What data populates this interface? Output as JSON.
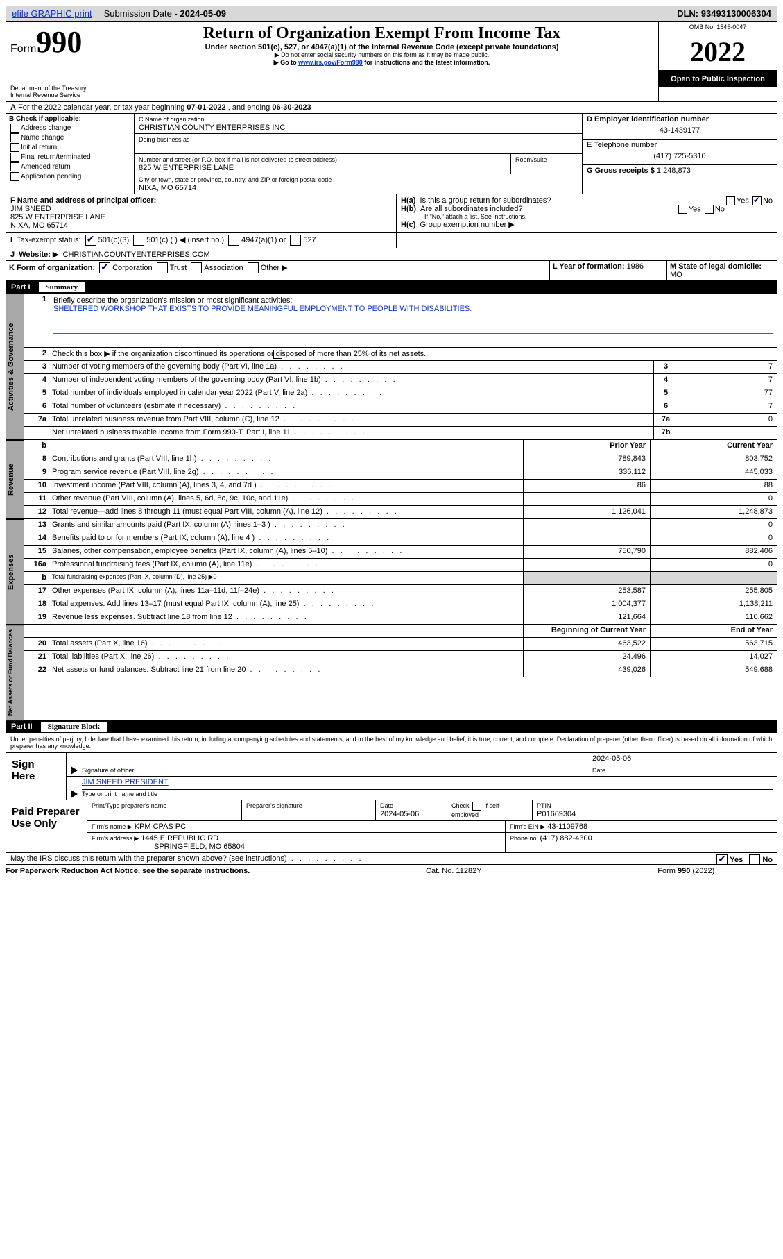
{
  "topbar": {
    "efile": "efile GRAPHIC print",
    "subdate_label": "Submission Date - ",
    "subdate": "2024-05-09",
    "dln_label": "DLN: ",
    "dln": "93493130006304"
  },
  "hdr": {
    "form_prefix": "Form",
    "form_num": "990",
    "title": "Return of Organization Exempt From Income Tax",
    "sub1": "Under section 501(c), 527, or 4947(a)(1) of the Internal Revenue Code (except private foundations)",
    "sub2": "▶ Do not enter social security numbers on this form as it may be made public.",
    "sub3_pre": "▶ Go to ",
    "sub3_link": "www.irs.gov/Form990",
    "sub3_post": " for instructions and the latest information.",
    "dept": "Department of the Treasury",
    "irs": "Internal Revenue Service",
    "omb": "OMB No. 1545-0047",
    "year": "2022",
    "otp": "Open to Public Inspection"
  },
  "A": {
    "text": "For the 2022 calendar year, or tax year beginning ",
    "d1": "07-01-2022",
    "mid": " , and ending ",
    "d2": "06-30-2023"
  },
  "B": {
    "title": "B Check if applicable:",
    "opts": [
      "Address change",
      "Name change",
      "Initial return",
      "Final return/terminated",
      "Amended return",
      "Application pending"
    ]
  },
  "C": {
    "name_label": "C Name of organization",
    "name": "CHRISTIAN COUNTY ENTERPRISES INC",
    "dba_label": "Doing business as",
    "dba": "",
    "street_label": "Number and street (or P.O. box if mail is not delivered to street address)",
    "room_label": "Room/suite",
    "street": "825 W ENTERPRISE LANE",
    "city_label": "City or town, state or province, country, and ZIP or foreign postal code",
    "city": "NIXA, MO  65714"
  },
  "D": {
    "label": "D Employer identification number",
    "val": "43-1439177"
  },
  "E": {
    "label": "E Telephone number",
    "val": "(417) 725-5310"
  },
  "G": {
    "label": "G Gross receipts $ ",
    "val": "1,248,873"
  },
  "F": {
    "label": "F  Name and address of principal officer:",
    "name": "JIM SNEED",
    "addr1": "825 W ENTERPRISE LANE",
    "addr2": "NIXA, MO  65714"
  },
  "H": {
    "a": "Is this a group return for subordinates?",
    "b": "Are all subordinates included?",
    "b2": "If \"No,\" attach a list. See instructions.",
    "c": "Group exemption number ▶"
  },
  "I": {
    "label": "Tax-exempt status:",
    "o1": "501(c)(3)",
    "o2": "501(c) (  ) ◀ (insert no.)",
    "o3": "4947(a)(1) or",
    "o4": "527"
  },
  "J": {
    "label": "Website: ▶",
    "val": "CHRISTIANCOUNTYENTERPRISES.COM"
  },
  "K": {
    "label": "K Form of organization:",
    "opts": [
      "Corporation",
      "Trust",
      "Association",
      "Other ▶"
    ]
  },
  "L": {
    "label": "L Year of formation: ",
    "val": "1986"
  },
  "M": {
    "label": "M State of legal domicile:",
    "val": "MO"
  },
  "part1": {
    "label": "Part I",
    "title": "Summary"
  },
  "sum": {
    "q1": "Briefly describe the organization's mission or most significant activities:",
    "mission": "SHELTERED WORKSHOP THAT EXISTS TO PROVIDE MEANINGFUL EMPLOYMENT TO PEOPLE WITH DISABILITIES.",
    "q2": "Check this box ▶       if the organization discontinued its operations or disposed of more than 25% of its net assets.",
    "rows_a": [
      {
        "n": "3",
        "t": "Number of voting members of the governing body (Part VI, line 1a)",
        "bx": "3",
        "v": "7"
      },
      {
        "n": "4",
        "t": "Number of independent voting members of the governing body (Part VI, line 1b)",
        "bx": "4",
        "v": "7"
      },
      {
        "n": "5",
        "t": "Total number of individuals employed in calendar year 2022 (Part V, line 2a)",
        "bx": "5",
        "v": "77"
      },
      {
        "n": "6",
        "t": "Total number of volunteers (estimate if necessary)",
        "bx": "6",
        "v": "7"
      },
      {
        "n": "7a",
        "t": "Total unrelated business revenue from Part VIII, column (C), line 12",
        "bx": "7a",
        "v": "0"
      },
      {
        "n": "",
        "t": "Net unrelated business taxable income from Form 990-T, Part I, line 11",
        "bx": "7b",
        "v": ""
      }
    ],
    "hdr_prior": "Prior Year",
    "hdr_curr": "Current Year",
    "hdr_bcy": "Beginning of Current Year",
    "hdr_eoy": "End of Year",
    "rev": [
      {
        "n": "8",
        "t": "Contributions and grants (Part VIII, line 1h)",
        "p": "789,843",
        "c": "803,752"
      },
      {
        "n": "9",
        "t": "Program service revenue (Part VIII, line 2g)",
        "p": "336,112",
        "c": "445,033"
      },
      {
        "n": "10",
        "t": "Investment income (Part VIII, column (A), lines 3, 4, and 7d )",
        "p": "86",
        "c": "88"
      },
      {
        "n": "11",
        "t": "Other revenue (Part VIII, column (A), lines 5, 6d, 8c, 9c, 10c, and 11e)",
        "p": "",
        "c": "0"
      },
      {
        "n": "12",
        "t": "Total revenue—add lines 8 through 11 (must equal Part VIII, column (A), line 12)",
        "p": "1,126,041",
        "c": "1,248,873"
      }
    ],
    "exp": [
      {
        "n": "13",
        "t": "Grants and similar amounts paid (Part IX, column (A), lines 1–3 )",
        "p": "",
        "c": "0"
      },
      {
        "n": "14",
        "t": "Benefits paid to or for members (Part IX, column (A), line 4 )",
        "p": "",
        "c": "0"
      },
      {
        "n": "15",
        "t": "Salaries, other compensation, employee benefits (Part IX, column (A), lines 5–10)",
        "p": "750,790",
        "c": "882,406"
      },
      {
        "n": "16a",
        "t": "Professional fundraising fees (Part IX, column (A), line 11e)",
        "p": "",
        "c": "0"
      },
      {
        "n": "b",
        "t": "Total fundraising expenses (Part IX, column (D), line 25) ▶0",
        "p": null,
        "c": null,
        "shade": true
      },
      {
        "n": "17",
        "t": "Other expenses (Part IX, column (A), lines 11a–11d, 11f–24e)",
        "p": "253,587",
        "c": "255,805"
      },
      {
        "n": "18",
        "t": "Total expenses. Add lines 13–17 (must equal Part IX, column (A), line 25)",
        "p": "1,004,377",
        "c": "1,138,211"
      },
      {
        "n": "19",
        "t": "Revenue less expenses. Subtract line 18 from line 12",
        "p": "121,664",
        "c": "110,662"
      }
    ],
    "na": [
      {
        "n": "20",
        "t": "Total assets (Part X, line 16)",
        "p": "463,522",
        "c": "563,715"
      },
      {
        "n": "21",
        "t": "Total liabilities (Part X, line 26)",
        "p": "24,496",
        "c": "14,027"
      },
      {
        "n": "22",
        "t": "Net assets or fund balances. Subtract line 21 from line 20",
        "p": "439,026",
        "c": "549,688"
      }
    ]
  },
  "tabs": {
    "ag": "Activities & Governance",
    "rev": "Revenue",
    "exp": "Expenses",
    "na": "Net Assets or Fund Balances"
  },
  "part2": {
    "label": "Part II",
    "title": "Signature Block"
  },
  "decl": "Under penalties of perjury, I declare that I have examined this return, including accompanying schedules and statements, and to the best of my knowledge and belief, it is true, correct, and complete. Declaration of preparer (other than officer) is based on all information of which preparer has any knowledge.",
  "sign": {
    "here": "Sign Here",
    "sig_label": "Signature of officer",
    "date_label": "Date",
    "date": "2024-05-06",
    "name": "JIM SNEED PRESIDENT",
    "name_label": "Type or print name and title"
  },
  "prep": {
    "label": "Paid Preparer Use Only",
    "c1": "Print/Type preparer's name",
    "c2": "Preparer's signature",
    "c3": "Date",
    "c3v": "2024-05-06",
    "c4": "Check         if self-employed",
    "c5": "PTIN",
    "c5v": "P01669304",
    "firm_label": "Firm's name   ▶",
    "firm": "KPM CPAS PC",
    "ein_label": "Firm's EIN ▶",
    "ein": "43-1109768",
    "addr_label": "Firm's address ▶",
    "addr1": "1445 E REPUBLIC RD",
    "addr2": "SPRINGFIELD, MO  65804",
    "phone_label": "Phone no. ",
    "phone": "(417) 882-4300"
  },
  "may": {
    "q": "May the IRS discuss this return with the preparer shown above? (see instructions)",
    "yes": "Yes",
    "no": "No"
  },
  "foot": {
    "l": "For Paperwork Reduction Act Notice, see the separate instructions.",
    "c": "Cat. No. 11282Y",
    "r": "Form 990 (2022)"
  }
}
